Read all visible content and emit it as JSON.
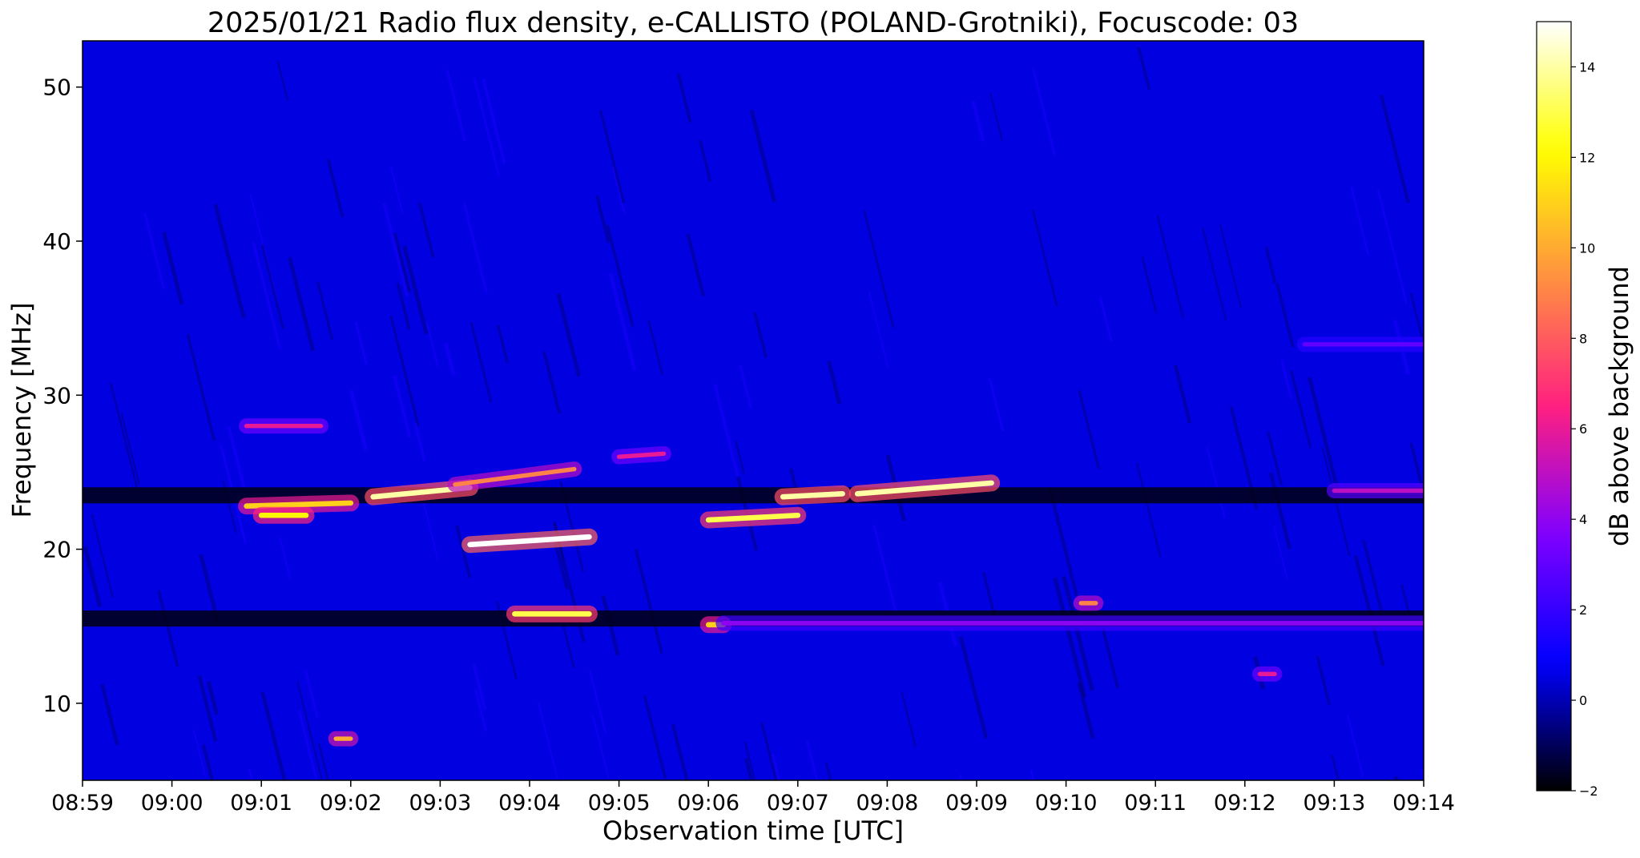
{
  "chart_data": {
    "type": "heatmap",
    "title": "2025/01/21  Radio flux density, e-CALLISTO (POLAND-Grotniki), Focuscode: 03",
    "xlabel": "Observation time [UTC]",
    "ylabel": "Frequency [MHz]",
    "xlim": [
      "08:59",
      "09:14"
    ],
    "ylim": [
      5,
      53
    ],
    "x_ticks": [
      "08:59",
      "09:00",
      "09:01",
      "09:02",
      "09:03",
      "09:04",
      "09:05",
      "09:06",
      "09:07",
      "09:08",
      "09:09",
      "09:10",
      "09:11",
      "09:12",
      "09:13",
      "09:14"
    ],
    "y_ticks": [
      10,
      20,
      30,
      40,
      50
    ],
    "colorbar": {
      "label": "dB above background",
      "range": [
        -2,
        15
      ],
      "ticks": [
        -2,
        0,
        2,
        4,
        6,
        8,
        10,
        12,
        14
      ],
      "colormap": "gnuplot2",
      "colors": [
        "#000000",
        "#0000ff",
        "#8000ff",
        "#ff2080",
        "#ff9040",
        "#ffff00",
        "#ffffff"
      ]
    },
    "background_level_db": 0.5,
    "features": [
      {
        "start": "09:00:50",
        "end": "09:02:00",
        "freq_start_mhz": 22.8,
        "freq_end_mhz": 23.0,
        "peak_db": 11
      },
      {
        "start": "09:01:00",
        "end": "09:01:30",
        "freq_start_mhz": 22.2,
        "freq_end_mhz": 22.2,
        "peak_db": 12
      },
      {
        "start": "09:02:15",
        "end": "09:03:20",
        "freq_start_mhz": 23.4,
        "freq_end_mhz": 24.0,
        "peak_db": 14
      },
      {
        "start": "09:03:10",
        "end": "09:04:30",
        "freq_start_mhz": 24.2,
        "freq_end_mhz": 25.2,
        "peak_db": 9
      },
      {
        "start": "09:00:50",
        "end": "09:01:40",
        "freq_start_mhz": 28.0,
        "freq_end_mhz": 28.0,
        "peak_db": 6
      },
      {
        "start": "09:05:00",
        "end": "09:05:30",
        "freq_start_mhz": 26.0,
        "freq_end_mhz": 26.2,
        "peak_db": 6
      },
      {
        "start": "09:03:20",
        "end": "09:04:40",
        "freq_start_mhz": 20.3,
        "freq_end_mhz": 20.8,
        "peak_db": 15
      },
      {
        "start": "09:03:50",
        "end": "09:04:40",
        "freq_start_mhz": 15.8,
        "freq_end_mhz": 15.8,
        "peak_db": 13
      },
      {
        "start": "09:06:00",
        "end": "09:07:00",
        "freq_start_mhz": 21.9,
        "freq_end_mhz": 22.2,
        "peak_db": 13
      },
      {
        "start": "09:06:50",
        "end": "09:07:30",
        "freq_start_mhz": 23.4,
        "freq_end_mhz": 23.6,
        "peak_db": 14
      },
      {
        "start": "09:07:40",
        "end": "09:09:10",
        "freq_start_mhz": 23.6,
        "freq_end_mhz": 24.3,
        "peak_db": 14
      },
      {
        "start": "09:06:00",
        "end": "09:06:10",
        "freq_start_mhz": 15.1,
        "freq_end_mhz": 15.1,
        "peak_db": 11
      },
      {
        "start": "09:06:10",
        "end": "09:14:00",
        "freq_start_mhz": 15.2,
        "freq_end_mhz": 15.2,
        "peak_db": 4
      },
      {
        "start": "09:10:10",
        "end": "09:10:20",
        "freq_start_mhz": 16.5,
        "freq_end_mhz": 16.5,
        "peak_db": 9
      },
      {
        "start": "09:12:10",
        "end": "09:12:20",
        "freq_start_mhz": 11.9,
        "freq_end_mhz": 11.9,
        "peak_db": 6
      },
      {
        "start": "09:01:50",
        "end": "09:02:00",
        "freq_start_mhz": 7.7,
        "freq_end_mhz": 7.7,
        "peak_db": 10
      },
      {
        "start": "09:12:40",
        "end": "09:14:00",
        "freq_start_mhz": 33.3,
        "freq_end_mhz": 33.3,
        "peak_db": 3
      },
      {
        "start": "09:13:00",
        "end": "09:14:00",
        "freq_start_mhz": 23.8,
        "freq_end_mhz": 23.8,
        "peak_db": 5
      }
    ],
    "dark_lanes": [
      {
        "freq_mhz": 23.5,
        "from": "08:59:00",
        "to": "09:14:00"
      },
      {
        "freq_mhz": 15.5,
        "from": "08:59:00",
        "to": "09:14:00"
      }
    ],
    "grid": false
  }
}
